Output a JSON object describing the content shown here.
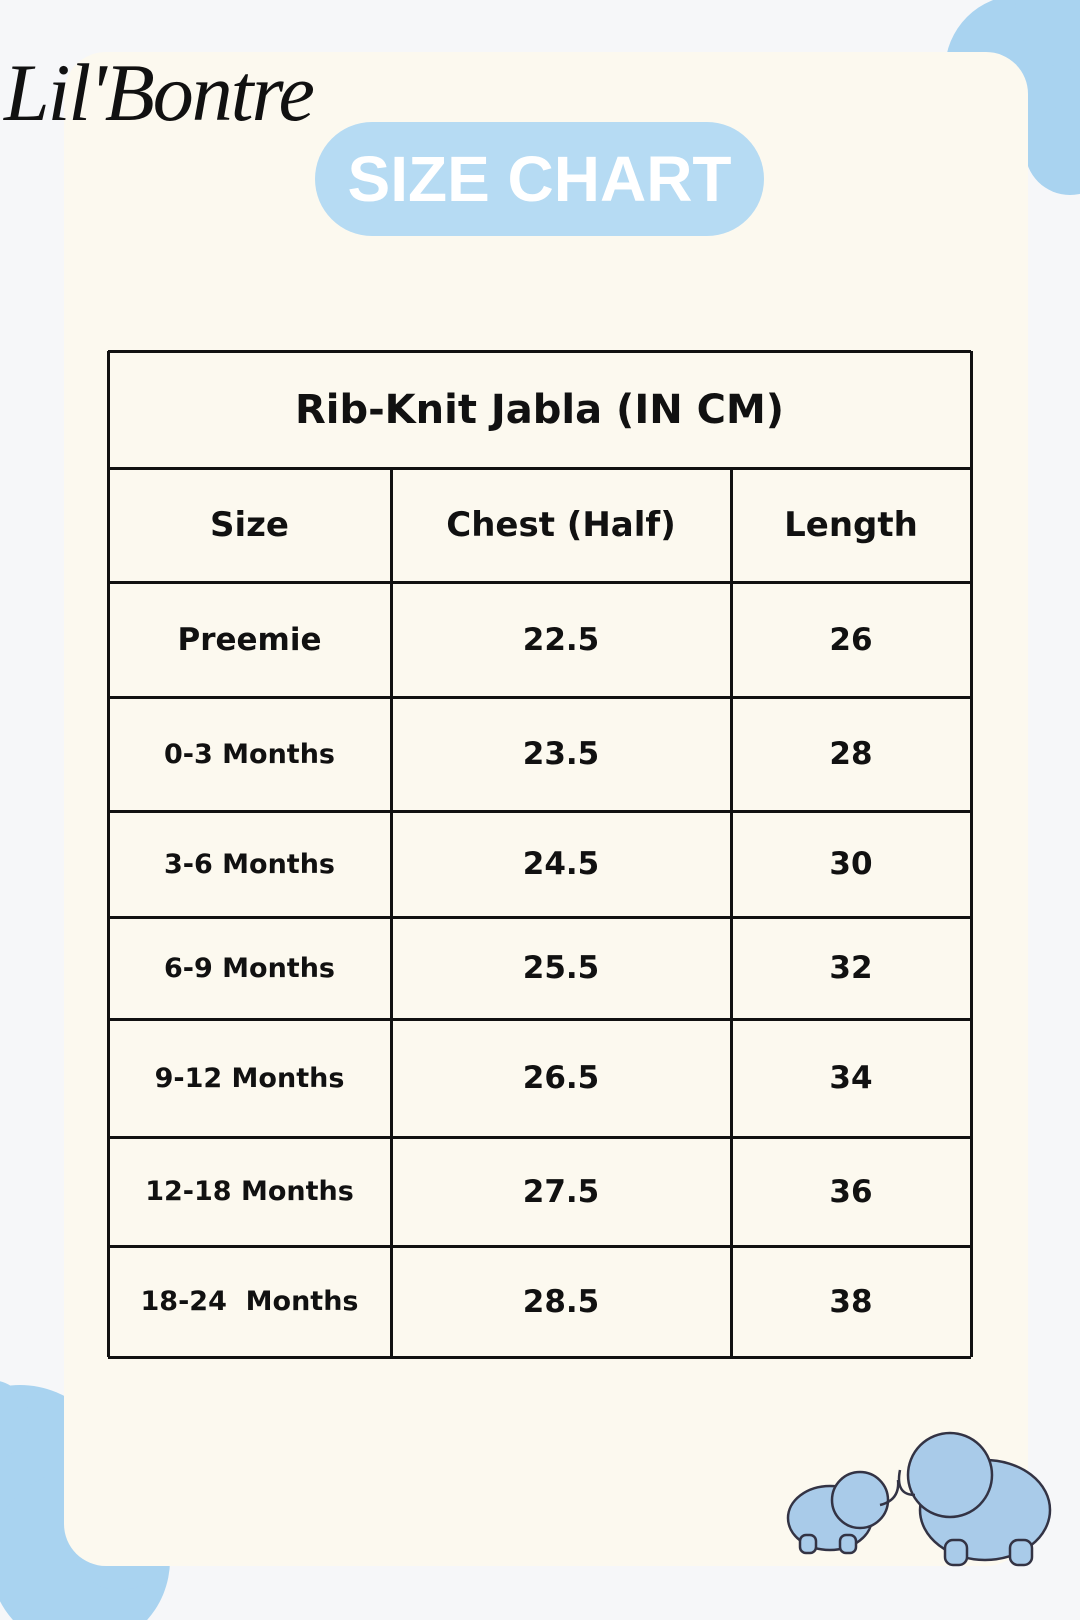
{
  "brand": "Lil'Bontre",
  "header": {
    "title": "SIZE CHART"
  },
  "table": {
    "title": "Rib-Knit Jabla (IN CM)",
    "columns": [
      "Size",
      "Chest (Half)",
      "Length"
    ],
    "rows": [
      [
        "Preemie",
        22.5,
        26
      ],
      [
        "0-3 Months",
        23.5,
        28
      ],
      [
        "3-6 Months",
        24.5,
        30
      ],
      [
        "6-9 Months",
        25.5,
        32
      ],
      [
        "9-12 Months",
        26.5,
        34
      ],
      [
        "12-18 Months",
        27.5,
        36
      ],
      [
        "18-24  Months",
        28.5,
        38
      ]
    ]
  }
}
